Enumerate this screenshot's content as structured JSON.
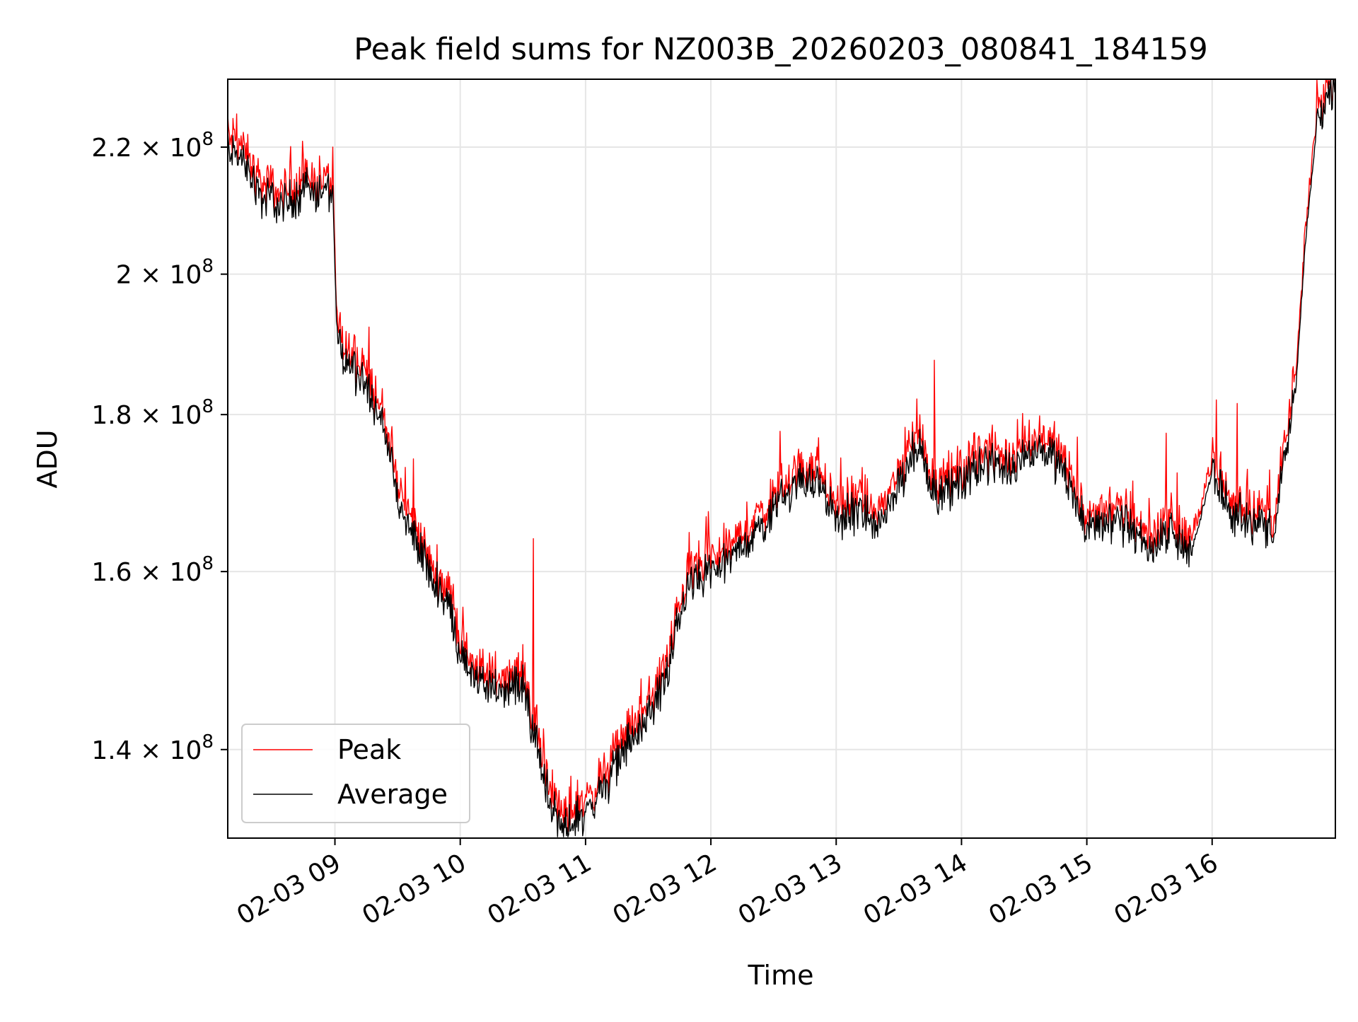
{
  "chart_data": {
    "type": "line",
    "title": "Peak field sums for NZ003B_20260203_080841_184159",
    "xlabel": "Time",
    "ylabel": "ADU",
    "yscale": "log",
    "xlim": [
      "2026-02-03 08:08:41",
      "2026-02-03 16:59:00"
    ],
    "ylim": [
      131000000,
      231500000
    ],
    "x_ticks": [
      {
        "value": "2026-02-03 09:00",
        "label": "02-03 09"
      },
      {
        "value": "2026-02-03 10:00",
        "label": "02-03 10"
      },
      {
        "value": "2026-02-03 11:00",
        "label": "02-03 11"
      },
      {
        "value": "2026-02-03 12:00",
        "label": "02-03 12"
      },
      {
        "value": "2026-02-03 13:00",
        "label": "02-03 13"
      },
      {
        "value": "2026-02-03 14:00",
        "label": "02-03 14"
      },
      {
        "value": "2026-02-03 15:00",
        "label": "02-03 15"
      },
      {
        "value": "2026-02-03 16:00",
        "label": "02-03 16"
      }
    ],
    "y_ticks": [
      {
        "value": 140000000,
        "mantissa": "1.4"
      },
      {
        "value": 160000000,
        "mantissa": "1.6"
      },
      {
        "value": 180000000,
        "mantissa": "1.8"
      },
      {
        "value": 200000000,
        "mantissa": "2"
      },
      {
        "value": 220000000,
        "mantissa": "2.2"
      }
    ],
    "y_tick_base": "10",
    "y_tick_exponent": "8",
    "grid": true,
    "legend_position": "lower-left",
    "series": [
      {
        "name": "Peak",
        "color": "#ff0000"
      },
      {
        "name": "Average",
        "color": "#000000"
      }
    ],
    "x": [
      "2026-02-03 08:08",
      "2026-02-03 08:15",
      "2026-02-03 08:25",
      "2026-02-03 08:35",
      "2026-02-03 08:45",
      "2026-02-03 08:55",
      "2026-02-03 08:59",
      "2026-02-03 09:01",
      "2026-02-03 09:05",
      "2026-02-03 09:15",
      "2026-02-03 09:25",
      "2026-02-03 09:30",
      "2026-02-03 09:35",
      "2026-02-03 09:45",
      "2026-02-03 09:55",
      "2026-02-03 10:00",
      "2026-02-03 10:10",
      "2026-02-03 10:20",
      "2026-02-03 10:30",
      "2026-02-03 10:40",
      "2026-02-03 10:45",
      "2026-02-03 10:50",
      "2026-02-03 11:00",
      "2026-02-03 11:10",
      "2026-02-03 11:20",
      "2026-02-03 11:30",
      "2026-02-03 11:40",
      "2026-02-03 11:45",
      "2026-02-03 11:50",
      "2026-02-03 12:00",
      "2026-02-03 12:10",
      "2026-02-03 12:20",
      "2026-02-03 12:30",
      "2026-02-03 12:40",
      "2026-02-03 12:50",
      "2026-02-03 13:00",
      "2026-02-03 13:10",
      "2026-02-03 13:20",
      "2026-02-03 13:30",
      "2026-02-03 13:35",
      "2026-02-03 13:40",
      "2026-02-03 13:45",
      "2026-02-03 13:50",
      "2026-02-03 14:00",
      "2026-02-03 14:10",
      "2026-02-03 14:20",
      "2026-02-03 14:30",
      "2026-02-03 14:40",
      "2026-02-03 14:50",
      "2026-02-03 15:00",
      "2026-02-03 15:10",
      "2026-02-03 15:20",
      "2026-02-03 15:30",
      "2026-02-03 15:40",
      "2026-02-03 15:50",
      "2026-02-03 16:00",
      "2026-02-03 16:10",
      "2026-02-03 16:20",
      "2026-02-03 16:30",
      "2026-02-03 16:35",
      "2026-02-03 16:40",
      "2026-02-03 16:45",
      "2026-02-03 16:50",
      "2026-02-03 16:55",
      "2026-02-03 16:59"
    ],
    "average": [
      220500000,
      218000000,
      212000000,
      210500000,
      213000000,
      212500000,
      212000000,
      190000000,
      187500000,
      184500000,
      177000000,
      168000000,
      166000000,
      160000000,
      156000000,
      150000000,
      147000000,
      146500000,
      147000000,
      137000000,
      133500000,
      132000000,
      133500000,
      136500000,
      140500000,
      143500000,
      148500000,
      155500000,
      158500000,
      160000000,
      161500000,
      164500000,
      167500000,
      171000000,
      171500000,
      166500000,
      167000000,
      166000000,
      170500000,
      174000000,
      176000000,
      171000000,
      169500000,
      171000000,
      174000000,
      172000000,
      174500000,
      176000000,
      171500000,
      165000000,
      166500000,
      165500000,
      163000000,
      165000000,
      162000000,
      172500000,
      167000000,
      166000000,
      165000000,
      175000000,
      183000000,
      206000000,
      223000000,
      228500000,
      230500000
    ],
    "spikes": [
      {
        "time": "2026-02-03 13:47",
        "peak": 187500000
      },
      {
        "time": "2026-02-03 10:35",
        "peak": 164000000
      },
      {
        "time": "2026-02-03 16:02",
        "peak": 182000000
      },
      {
        "time": "2026-02-03 16:12",
        "peak": 181500000
      },
      {
        "time": "2026-02-03 15:38",
        "peak": 177500000
      }
    ]
  }
}
